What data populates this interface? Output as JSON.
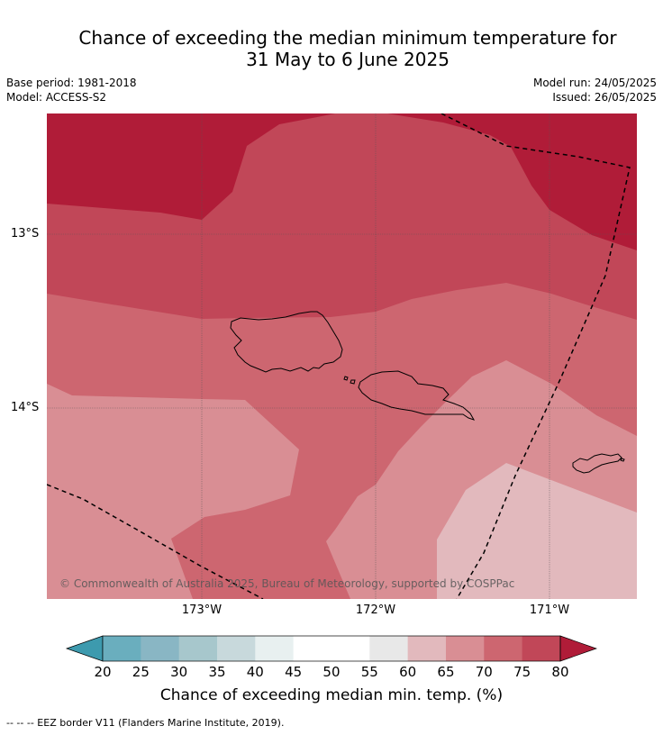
{
  "title": {
    "line1": "Chance of exceeding the median minimum temperature for",
    "line2": "31 May to 6 June 2025"
  },
  "meta": {
    "base_period": "Base period: 1981-2018",
    "model": "Model: ACCESS-S2",
    "model_run": "Model run: 24/05/2025",
    "issued": "Issued: 26/05/2025"
  },
  "map": {
    "latitude_labels": [
      "13°S",
      "14°S"
    ],
    "longitude_labels": [
      "173°W",
      "172°W",
      "171°W"
    ],
    "copyright": "© Commonwealth of Australia 2025, Bureau of Meteorology, supported by COSPPac",
    "colors": {
      "gt80": "#b01c38",
      "p75_80": "#c14758",
      "p70_75": "#cd6670",
      "p65_70": "#d98e94",
      "p60_65": "#e2b9bd",
      "coast": "#000000",
      "eez": "#000000"
    }
  },
  "colorbar": {
    "ticks": [
      "20",
      "25",
      "30",
      "35",
      "40",
      "45",
      "50",
      "55",
      "60",
      "65",
      "70",
      "75",
      "80"
    ],
    "colors": [
      "#3d9aae",
      "#6aaebe",
      "#89b6c4",
      "#a7c7cc",
      "#c8d9dc",
      "#e8f0f0",
      "#ffffff",
      "#ffffff",
      "#e8e8e8",
      "#e2b9bd",
      "#d98e94",
      "#cd6670",
      "#c14758",
      "#b01c38"
    ],
    "label": "Chance of exceeding median min. temp. (%)"
  },
  "footnote": "--  --  -- EEZ border V11 (Flanders Marine Institute, 2019)."
}
